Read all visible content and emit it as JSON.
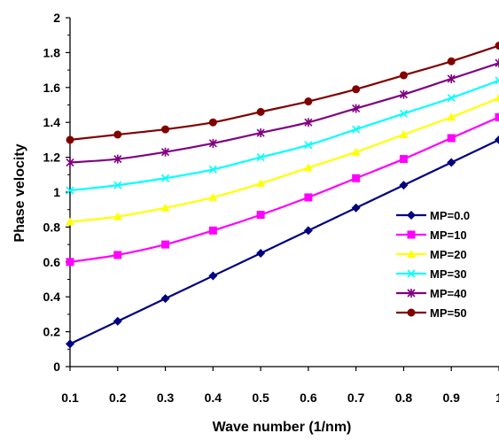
{
  "chart_data": {
    "type": "line",
    "xlabel": "Wave number (1/nm)",
    "ylabel": "Phase velocity",
    "x": [
      0.1,
      0.2,
      0.3,
      0.4,
      0.5,
      0.6,
      0.7,
      0.8,
      0.9,
      1.0
    ],
    "x_tick_labels": [
      "0.1",
      "0.2",
      "0.3",
      "0.4",
      "0.5",
      "0.6",
      "0.7",
      "0.8",
      "0.9",
      "1"
    ],
    "y_tick_labels": [
      "0",
      "0.2",
      "0.4",
      "0.6",
      "0.8",
      "1",
      "1.2",
      "1.4",
      "1.6",
      "1.8",
      "2"
    ],
    "xlim": [
      0.1,
      1.0
    ],
    "ylim": [
      0,
      2
    ],
    "grid": false,
    "legend_position": "bottom-right",
    "series": [
      {
        "name": "MP=0.0",
        "color": "#000080",
        "marker": "diamond",
        "values": [
          0.13,
          0.26,
          0.39,
          0.52,
          0.65,
          0.78,
          0.91,
          1.04,
          1.17,
          1.3
        ]
      },
      {
        "name": "MP=10",
        "color": "#FF00FF",
        "marker": "square",
        "values": [
          0.6,
          0.64,
          0.7,
          0.78,
          0.87,
          0.97,
          1.08,
          1.19,
          1.31,
          1.43
        ]
      },
      {
        "name": "MP=20",
        "color": "#FFFF00",
        "marker": "triangle",
        "values": [
          0.83,
          0.86,
          0.91,
          0.97,
          1.05,
          1.14,
          1.23,
          1.33,
          1.43,
          1.54
        ]
      },
      {
        "name": "MP=30",
        "color": "#00FFFF",
        "marker": "x",
        "values": [
          1.01,
          1.04,
          1.08,
          1.13,
          1.2,
          1.27,
          1.36,
          1.45,
          1.54,
          1.64
        ]
      },
      {
        "name": "MP=40",
        "color": "#800080",
        "marker": "star",
        "values": [
          1.17,
          1.19,
          1.23,
          1.28,
          1.34,
          1.4,
          1.48,
          1.56,
          1.65,
          1.74
        ]
      },
      {
        "name": "MP=50",
        "color": "#800000",
        "marker": "circle",
        "values": [
          1.3,
          1.33,
          1.36,
          1.4,
          1.46,
          1.52,
          1.59,
          1.67,
          1.75,
          1.84
        ]
      }
    ]
  }
}
